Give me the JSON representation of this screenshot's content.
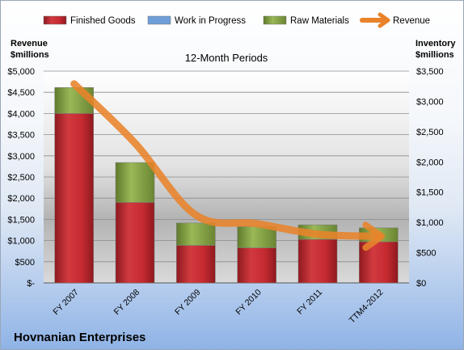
{
  "chart_data": {
    "type": "bar",
    "title": "12-Month Periods",
    "company": "Hovnanian Enterprises",
    "left_axis_label": [
      "Revenue",
      "$millions"
    ],
    "right_axis_label": [
      "Inventory",
      "$millions"
    ],
    "categories": [
      "FY 2007",
      "FY 2008",
      "FY 2009",
      "FY 2010",
      "FY 2011",
      "TTM4-2012"
    ],
    "left_ticks": [
      "$-",
      "$500",
      "$1,000",
      "$1,500",
      "$2,000",
      "$2,500",
      "$3,000",
      "$3,500",
      "$4,000",
      "$4,500",
      "$5,000"
    ],
    "right_ticks": [
      "$0",
      "$500",
      "$1,000",
      "$1,500",
      "$2,000",
      "$2,500",
      "$3,000",
      "$3,500"
    ],
    "ylim_left": [
      0,
      5000
    ],
    "ylim_right": [
      0,
      3500
    ],
    "stacked": true,
    "series": [
      {
        "name": "Finished Goods",
        "axis": "right",
        "color": "#c0272d",
        "values": [
          2800,
          1330,
          620,
          580,
          720,
          680
        ]
      },
      {
        "name": "Work in Progress",
        "axis": "right",
        "color": "#6f9fd8",
        "values": [
          0,
          0,
          0,
          0,
          0,
          0
        ]
      },
      {
        "name": "Raw Materials",
        "axis": "right",
        "color": "#8fa94a",
        "values": [
          430,
          660,
          370,
          350,
          240,
          230
        ]
      },
      {
        "name": "Revenue",
        "axis": "left",
        "type": "line",
        "color": "#e8832a",
        "values": [
          4700,
          3300,
          1600,
          1400,
          1150,
          1100
        ]
      }
    ],
    "grid": true,
    "legend": "top"
  }
}
